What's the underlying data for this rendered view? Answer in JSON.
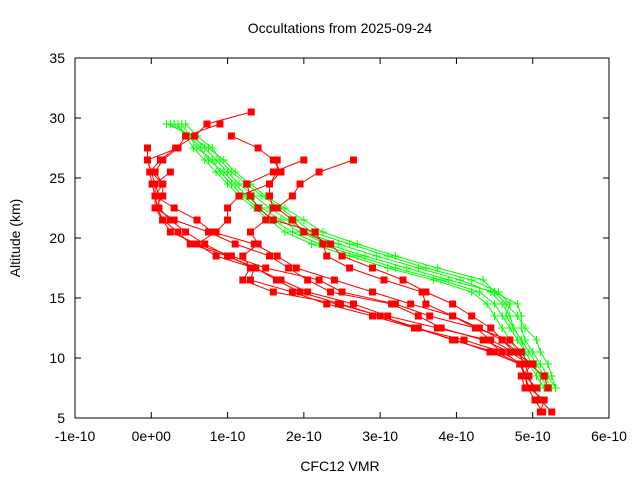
{
  "chart_data": {
    "type": "line",
    "title": "Occultations from 2025-09-24",
    "xlabel": "CFC12 VMR",
    "ylabel": "Altitude (km)",
    "xlim": [
      -1e-10,
      6e-10
    ],
    "ylim": [
      5,
      35
    ],
    "xticks": [
      -1e-10,
      0,
      1e-10,
      2e-10,
      3e-10,
      4e-10,
      5e-10,
      6e-10
    ],
    "xtick_labels": [
      "-1e-10",
      "0e+00",
      "1e-10",
      "2e-10",
      "3e-10",
      "4e-10",
      "5e-10",
      "6e-10"
    ],
    "yticks": [
      5,
      10,
      15,
      20,
      25,
      30,
      35
    ],
    "ytick_labels": [
      "5",
      "10",
      "15",
      "20",
      "25",
      "30",
      "35"
    ],
    "grid": false,
    "legend": "none",
    "colors": {
      "red_series": "#ff0000",
      "green_series": "#00ff00"
    },
    "red_series_marker": "filled-square",
    "green_series_marker": "plus",
    "red_series": [
      [
        [
          1.31e-10,
          30.5
        ],
        [
          7.3e-11,
          29.5
        ],
        [
          5.7e-11,
          28.5
        ],
        [
          3.2e-11,
          27.5
        ],
        [
          1.2e-11,
          26.5
        ],
        [
          -2e-12,
          25.5
        ],
        [
          1e-12,
          24.5
        ],
        [
          5e-12,
          23.5
        ],
        [
          8e-12,
          22.5
        ],
        [
          1.5e-11,
          21.5
        ],
        [
          3.5e-11,
          20.5
        ],
        [
          5.1e-11,
          19.5
        ],
        [
          1e-10,
          18.5
        ],
        [
          1.37e-10,
          17.5
        ],
        [
          1.64e-10,
          16.5
        ],
        [
          1.95e-10,
          15.5
        ],
        [
          2.48e-10,
          14.5
        ],
        [
          3e-10,
          13.5
        ],
        [
          3.46e-10,
          12.5
        ],
        [
          3.98e-10,
          11.5
        ],
        [
          4.44e-10,
          10.5
        ],
        [
          4.83e-10,
          9.5
        ],
        [
          4.9e-10,
          8.5
        ],
        [
          4.93e-10,
          7.5
        ],
        [
          5.03e-10,
          6.5
        ],
        [
          5.13e-10,
          5.5
        ]
      ],
      [
        [
          2.65e-10,
          26.5
        ],
        [
          2.2e-10,
          25.5
        ],
        [
          1.95e-10,
          24.5
        ],
        [
          1.85e-10,
          23.5
        ],
        [
          1.65e-10,
          22.5
        ],
        [
          1.85e-10,
          21.5
        ],
        [
          2e-10,
          20.5
        ],
        [
          2.35e-10,
          19.5
        ],
        [
          2.5e-10,
          18.5
        ],
        [
          2.9e-10,
          17.5
        ],
        [
          3.3e-10,
          16.5
        ],
        [
          3.6e-10,
          15.5
        ],
        [
          3.95e-10,
          14.5
        ],
        [
          4.2e-10,
          13.5
        ],
        [
          4.45e-10,
          12.5
        ],
        [
          4.6e-10,
          11.5
        ],
        [
          4.8e-10,
          10.5
        ],
        [
          4.9e-10,
          9.5
        ],
        [
          4.95e-10,
          8.5
        ],
        [
          5e-10,
          7.5
        ],
        [
          5.1e-10,
          6.5
        ],
        [
          5.25e-10,
          5.5
        ]
      ],
      [
        [
          1.05e-10,
          28.5
        ],
        [
          1.4e-10,
          27.5
        ],
        [
          1.6e-10,
          26.5
        ],
        [
          1.7e-10,
          25.5
        ],
        [
          1.55e-10,
          24.5
        ],
        [
          1.55e-10,
          23.5
        ],
        [
          1.6e-10,
          22.5
        ],
        [
          1.5e-10,
          21.5
        ],
        [
          1.3e-10,
          20.5
        ],
        [
          1.4e-10,
          19.5
        ],
        [
          1.2e-10,
          18.5
        ],
        [
          1.3e-10,
          17.5
        ],
        [
          1.2e-10,
          16.5
        ],
        [
          1.6e-10,
          15.5
        ],
        [
          2.45e-10,
          14.5
        ],
        [
          3e-10,
          13.5
        ],
        [
          3.5e-10,
          12.5
        ],
        [
          3.95e-10,
          11.5
        ],
        [
          4.5e-10,
          10.5
        ],
        [
          4.85e-10,
          9.5
        ],
        [
          4.9e-10,
          8.5
        ],
        [
          4.95e-10,
          7.5
        ],
        [
          5.15e-10,
          6.5
        ],
        [
          5.1e-10,
          5.5
        ]
      ],
      [
        [
          -5e-12,
          27.5
        ],
        [
          -5e-12,
          26.5
        ],
        [
          0.0,
          25.5
        ],
        [
          5e-12,
          24.5
        ],
        [
          1e-11,
          23.5
        ],
        [
          1e-11,
          22.5
        ],
        [
          2.5e-11,
          21.5
        ],
        [
          4.5e-11,
          20.5
        ],
        [
          7e-11,
          19.5
        ],
        [
          1e-10,
          18.5
        ],
        [
          1.35e-10,
          17.5
        ],
        [
          1.3e-10,
          16.5
        ],
        [
          1.85e-10,
          15.5
        ],
        [
          2.3e-10,
          14.5
        ],
        [
          2.9e-10,
          13.5
        ],
        [
          3.45e-10,
          12.5
        ],
        [
          4.1e-10,
          11.5
        ],
        [
          4.6e-10,
          10.5
        ],
        [
          4.85e-10,
          9.5
        ],
        [
          4.9e-10,
          8.5
        ],
        [
          5.05e-10,
          7.5
        ]
      ],
      [
        [
          3.5e-11,
          27.5
        ],
        [
          1.5e-11,
          26.5
        ],
        [
          5e-12,
          25.5
        ],
        [
          1.5e-11,
          24.5
        ],
        [
          5e-12,
          23.5
        ],
        [
          5e-12,
          22.5
        ],
        [
          1.5e-11,
          21.5
        ],
        [
          2.5e-11,
          20.5
        ],
        [
          6e-11,
          19.5
        ],
        [
          1.05e-10,
          18.5
        ],
        [
          1.5e-10,
          17.5
        ],
        [
          2.2e-10,
          16.5
        ],
        [
          2.5e-10,
          15.5
        ],
        [
          3.2e-10,
          14.5
        ],
        [
          3.65e-10,
          13.5
        ],
        [
          4.25e-10,
          12.5
        ],
        [
          4.45e-10,
          11.5
        ],
        [
          4.75e-10,
          10.5
        ],
        [
          5e-10,
          9.5
        ],
        [
          4.85e-10,
          8.5
        ],
        [
          4.9e-10,
          7.5
        ]
      ],
      [
        [
          2.5e-11,
          25.5
        ],
        [
          5e-12,
          24.5
        ],
        [
          5e-12,
          23.5
        ],
        [
          3e-11,
          22.5
        ],
        [
          6e-11,
          21.5
        ],
        [
          8e-11,
          20.5
        ],
        [
          1.35e-10,
          19.5
        ],
        [
          1.65e-10,
          18.5
        ],
        [
          1.9e-10,
          17.5
        ],
        [
          2.4e-10,
          16.5
        ],
        [
          2.9e-10,
          15.5
        ],
        [
          3.4e-10,
          14.5
        ],
        [
          3.95e-10,
          13.5
        ],
        [
          4.3e-10,
          12.5
        ],
        [
          4.6e-10,
          11.5
        ],
        [
          4.75e-10,
          10.5
        ]
      ],
      [
        [
          9e-11,
          29.5
        ],
        [
          4.5e-11,
          28.5
        ],
        [
          3.5e-11,
          27.5
        ],
        [
          -5e-12,
          26.5
        ],
        [
          0.0,
          25.5
        ],
        [
          1.5e-11,
          24.5
        ],
        [
          1.5e-11,
          23.5
        ],
        [
          5e-12,
          22.5
        ],
        [
          3e-11,
          21.5
        ],
        [
          7.5e-11,
          20.5
        ],
        [
          1.1e-10,
          19.5
        ],
        [
          1.55e-10,
          18.5
        ],
        [
          1.8e-10,
          17.5
        ],
        [
          2.05e-10,
          16.5
        ],
        [
          2.35e-10,
          15.5
        ],
        [
          3.15e-10,
          14.5
        ],
        [
          3.5e-10,
          13.5
        ],
        [
          3.8e-10,
          12.5
        ],
        [
          4.35e-10,
          11.5
        ],
        [
          4.7e-10,
          10.5
        ],
        [
          4.95e-10,
          9.5
        ]
      ],
      [
        [
          2e-10,
          26.5
        ],
        [
          1.6e-10,
          25.5
        ],
        [
          1.25e-10,
          24.5
        ],
        [
          1.3e-10,
          23.5
        ],
        [
          1.4e-10,
          22.5
        ],
        [
          1.6e-10,
          21.5
        ],
        [
          2.15e-10,
          20.5
        ],
        [
          2.25e-10,
          19.5
        ],
        [
          2.3e-10,
          18.5
        ],
        [
          2.6e-10,
          17.5
        ],
        [
          3.05e-10,
          16.5
        ],
        [
          3.55e-10,
          15.5
        ],
        [
          3.6e-10,
          14.5
        ],
        [
          3.95e-10,
          13.5
        ],
        [
          4.25e-10,
          12.5
        ],
        [
          4.7e-10,
          11.5
        ],
        [
          4.85e-10,
          10.5
        ],
        [
          4.95e-10,
          9.5
        ],
        [
          5.15e-10,
          8.5
        ],
        [
          5.2e-10,
          7.5
        ]
      ],
      [
        [
          1.65e-10,
          26.5
        ],
        [
          1.65e-10,
          25.5
        ],
        [
          1.55e-10,
          24.5
        ],
        [
          1.15e-10,
          23.5
        ],
        [
          1e-10,
          22.5
        ],
        [
          1e-10,
          21.5
        ],
        [
          8.5e-11,
          20.5
        ],
        [
          6e-11,
          19.5
        ],
        [
          8.5e-11,
          18.5
        ],
        [
          1.35e-10,
          17.5
        ],
        [
          1.7e-10,
          16.5
        ],
        [
          2.05e-10,
          15.5
        ],
        [
          2.65e-10,
          14.5
        ],
        [
          3.1e-10,
          13.5
        ],
        [
          3.75e-10,
          12.5
        ],
        [
          4.4e-10,
          11.5
        ],
        [
          4.6e-10,
          10.5
        ]
      ]
    ],
    "green_altitudes": [
      29.5,
      28.5,
      27.5,
      26.5,
      25.5,
      24.5,
      23.5,
      22.5,
      21.5,
      20.5,
      19.5,
      18.5,
      17.5,
      16.5,
      15.5,
      14.5,
      13.5,
      12.5,
      11.5,
      10.5,
      9.5,
      8.5,
      7.5
    ],
    "green_series": [
      [
        3e-11,
        5e-11,
        6e-11,
        8e-11,
        9e-11,
        1.05e-10,
        1.2e-10,
        1.4e-10,
        1.6e-10,
        1.85e-10,
        2.2e-10,
        2.7e-10,
        3.2e-10,
        3.8e-10,
        4.3e-10,
        4.5e-10,
        4.6e-10,
        4.7e-10,
        4.8e-10,
        4.9e-10,
        5e-10,
        5.1e-10,
        5.2e-10
      ],
      [
        2e-11,
        5.5e-11,
        7e-11,
        8.5e-11,
        1e-10,
        1.15e-10,
        1.35e-10,
        1.55e-10,
        1.8e-10,
        2e-10,
        2.45e-10,
        2.95e-10,
        3.5e-10,
        4.05e-10,
        4.45e-10,
        4.6e-10,
        4.7e-10,
        4.75e-10,
        4.85e-10,
        4.95e-10,
        5.05e-10,
        5.15e-10,
        5.25e-10
      ],
      [
        4e-11,
        5e-11,
        6.5e-11,
        7.5e-11,
        9.5e-11,
        1.1e-10,
        1.25e-10,
        1.45e-10,
        1.7e-10,
        1.95e-10,
        2.3e-10,
        2.8e-10,
        3.35e-10,
        3.9e-10,
        4.5e-10,
        4.8e-10,
        4.85e-10,
        4.85e-10,
        4.9e-10,
        5e-10,
        5.1e-10,
        5.2e-10,
        5.3e-10
      ],
      [
        4.5e-11,
        6e-11,
        8e-11,
        9e-11,
        1.05e-10,
        1.25e-10,
        1.45e-10,
        1.7e-10,
        1.9e-10,
        2.1e-10,
        2.6e-10,
        3.1e-10,
        3.6e-10,
        4.2e-10,
        4.55e-10,
        4.7e-10,
        4.65e-10,
        4.75e-10,
        4.85e-10,
        4.9e-10,
        5e-10,
        5.1e-10,
        5.1e-10
      ],
      [
        3.5e-11,
        4.5e-11,
        5.5e-11,
        7e-11,
        8.5e-11,
        1e-10,
        1.15e-10,
        1.35e-10,
        1.55e-10,
        1.75e-10,
        2.1e-10,
        2.6e-10,
        3.1e-10,
        3.7e-10,
        4.2e-10,
        4.4e-10,
        4.5e-10,
        4.6e-10,
        4.7e-10,
        4.8e-10,
        4.95e-10,
        5.05e-10,
        5.15e-10
      ],
      [
        2.5e-11,
        5e-11,
        7.5e-11,
        9.5e-11,
        1.1e-10,
        1.3e-10,
        1.5e-10,
        1.75e-10,
        2e-10,
        2.25e-10,
        2.7e-10,
        3.2e-10,
        3.75e-10,
        4.35e-10,
        4.5e-10,
        4.65e-10,
        4.8e-10,
        4.9e-10,
        5.05e-10,
        5.1e-10,
        5.2e-10,
        5.25e-10,
        5.3e-10
      ]
    ]
  }
}
